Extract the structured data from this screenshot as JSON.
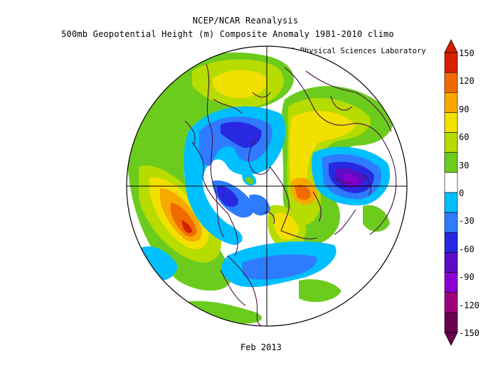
{
  "title": {
    "line1": "NCEP/NCAR Reanalysis",
    "line2": "500mb Geopotential Height (m) Composite Anomaly 1981-2010 climo"
  },
  "credit": "NOAA Physical Sciences Laboratory",
  "footer": "Feb 2013",
  "colorbar": {
    "labels": [
      "150",
      "120",
      "90",
      "60",
      "30",
      "0",
      "-30",
      "-60",
      "-90",
      "-120",
      "-150"
    ],
    "colors": [
      "#d62000",
      "#f06a00",
      "#f9a800",
      "#f2e000",
      "#b6dc00",
      "#6ccc1e",
      "#ffffff",
      "#00bfff",
      "#2e7bff",
      "#2828e0",
      "#5a0dc4",
      "#8a00d0",
      "#a0007a",
      "#6a0050"
    ]
  },
  "map": {
    "projection": "north-polar-stereographic",
    "colors": {
      "pos30": "#6ccc1e",
      "pos60": "#b6dc00",
      "pos90": "#f2e000",
      "pos120": "#f9a800",
      "pos150": "#f06a00",
      "pos180": "#d62000",
      "neg30": "#00bfff",
      "neg60": "#2e7bff",
      "neg90": "#2828e0",
      "neg120": "#5a0dc4",
      "neg150": "#8a00d0",
      "coast": "#4a1048"
    }
  }
}
